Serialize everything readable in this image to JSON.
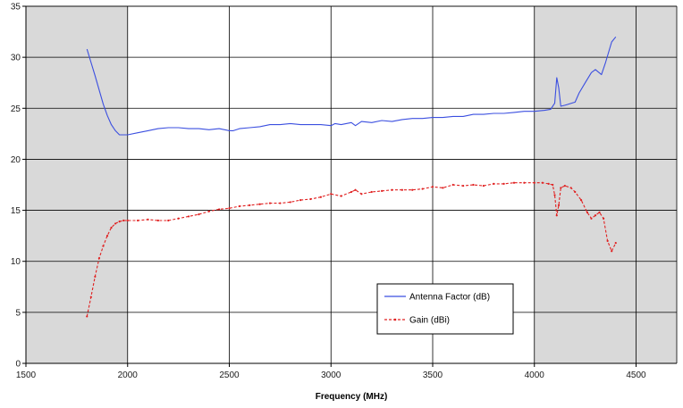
{
  "chart_data": {
    "type": "line",
    "title": "",
    "xlabel": "Frequency (MHz)",
    "ylabel": "",
    "xlim": [
      1500,
      4700
    ],
    "ylim": [
      0,
      35
    ],
    "x_ticks": [
      1500,
      2000,
      2500,
      3000,
      3500,
      4000,
      4500
    ],
    "y_ticks": [
      0,
      5,
      10,
      15,
      20,
      25,
      30,
      35
    ],
    "x_tick_labels": [
      "1500",
      "2000",
      "2500",
      "3000",
      "3500",
      "4000",
      "4500"
    ],
    "y_tick_labels": [
      "0",
      "5",
      "10",
      "15",
      "20",
      "25",
      "30",
      "35"
    ],
    "grid": true,
    "shaded_regions": [
      {
        "x_from": 1500,
        "x_to": 2000,
        "color": "#d9d9d9"
      },
      {
        "x_from": 4000,
        "x_to": 4700,
        "color": "#d9d9d9"
      }
    ],
    "plot_background": "#ffffff",
    "legend_position": "bottom-center",
    "series": [
      {
        "name": "Antenna Factor (dB)",
        "color": "#3b4fe0",
        "style": "solid",
        "x": [
          1800,
          1820,
          1840,
          1860,
          1880,
          1900,
          1920,
          1940,
          1960,
          1980,
          2000,
          2050,
          2100,
          2150,
          2200,
          2250,
          2300,
          2350,
          2400,
          2450,
          2500,
          2520,
          2550,
          2600,
          2650,
          2700,
          2750,
          2800,
          2850,
          2900,
          2950,
          3000,
          3020,
          3050,
          3100,
          3120,
          3150,
          3200,
          3250,
          3300,
          3350,
          3400,
          3450,
          3500,
          3550,
          3600,
          3650,
          3700,
          3750,
          3800,
          3850,
          3900,
          3950,
          4000,
          4050,
          4080,
          4100,
          4110,
          4120,
          4130,
          4150,
          4200,
          4220,
          4250,
          4280,
          4300,
          4330,
          4350,
          4380,
          4400
        ],
        "y": [
          30.8,
          29.5,
          28.2,
          26.8,
          25.4,
          24.3,
          23.4,
          22.8,
          22.4,
          22.4,
          22.4,
          22.6,
          22.8,
          23.0,
          23.1,
          23.1,
          23.0,
          23.0,
          22.9,
          23.0,
          22.8,
          22.8,
          23.0,
          23.1,
          23.2,
          23.4,
          23.4,
          23.5,
          23.4,
          23.4,
          23.4,
          23.3,
          23.5,
          23.4,
          23.6,
          23.3,
          23.7,
          23.6,
          23.8,
          23.7,
          23.9,
          24.0,
          24.0,
          24.1,
          24.1,
          24.2,
          24.2,
          24.4,
          24.4,
          24.5,
          24.5,
          24.6,
          24.7,
          24.7,
          24.8,
          24.9,
          25.5,
          28.0,
          27.0,
          25.2,
          25.3,
          25.6,
          26.5,
          27.5,
          28.5,
          28.8,
          28.3,
          29.5,
          31.5,
          32.0
        ]
      },
      {
        "name": "Gain (dBi)",
        "color": "#e02020",
        "style": "dashed-markers",
        "x": [
          1800,
          1820,
          1840,
          1860,
          1880,
          1900,
          1920,
          1940,
          1960,
          1980,
          2000,
          2050,
          2100,
          2150,
          2200,
          2250,
          2300,
          2350,
          2400,
          2450,
          2500,
          2550,
          2600,
          2650,
          2700,
          2750,
          2800,
          2850,
          2900,
          2950,
          3000,
          3050,
          3100,
          3120,
          3150,
          3200,
          3250,
          3300,
          3350,
          3400,
          3450,
          3500,
          3550,
          3600,
          3650,
          3700,
          3750,
          3800,
          3850,
          3900,
          3950,
          4000,
          4040,
          4070,
          4090,
          4100,
          4110,
          4120,
          4130,
          4150,
          4180,
          4200,
          4230,
          4260,
          4280,
          4300,
          4320,
          4340,
          4360,
          4380,
          4400
        ],
        "y": [
          4.6,
          6.5,
          8.5,
          10.3,
          11.5,
          12.5,
          13.3,
          13.7,
          13.9,
          14.0,
          14.0,
          14.0,
          14.1,
          14.0,
          14.0,
          14.2,
          14.4,
          14.6,
          14.9,
          15.1,
          15.2,
          15.4,
          15.5,
          15.6,
          15.7,
          15.7,
          15.8,
          16.0,
          16.1,
          16.3,
          16.6,
          16.4,
          16.8,
          17.0,
          16.6,
          16.8,
          16.9,
          17.0,
          17.0,
          17.0,
          17.1,
          17.3,
          17.2,
          17.5,
          17.4,
          17.5,
          17.4,
          17.6,
          17.6,
          17.7,
          17.7,
          17.7,
          17.7,
          17.6,
          17.5,
          16.5,
          14.5,
          15.5,
          17.2,
          17.4,
          17.2,
          16.8,
          16.0,
          14.8,
          14.2,
          14.5,
          14.8,
          14.2,
          12.0,
          11.0,
          11.8
        ]
      }
    ]
  }
}
